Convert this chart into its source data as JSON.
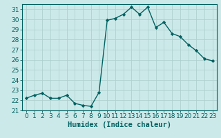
{
  "x": [
    0,
    1,
    2,
    3,
    4,
    5,
    6,
    7,
    8,
    9,
    10,
    11,
    12,
    13,
    14,
    15,
    16,
    17,
    18,
    19,
    20,
    21,
    22,
    23
  ],
  "y": [
    22.2,
    22.5,
    22.7,
    22.2,
    22.2,
    22.5,
    21.7,
    21.5,
    21.4,
    22.8,
    29.9,
    30.1,
    30.5,
    31.2,
    30.5,
    31.2,
    29.2,
    29.7,
    28.6,
    28.3,
    27.5,
    26.9,
    26.1,
    25.9
  ],
  "line_color": "#006060",
  "marker": "D",
  "marker_size": 2.2,
  "bg_color": "#cce9e9",
  "grid_color": "#b0d0d0",
  "xlabel": "Humidex (Indice chaleur)",
  "xlim": [
    -0.5,
    23.5
  ],
  "ylim": [
    21,
    31.5
  ],
  "yticks": [
    21,
    22,
    23,
    24,
    25,
    26,
    27,
    28,
    29,
    30,
    31
  ],
  "xticks": [
    0,
    1,
    2,
    3,
    4,
    5,
    6,
    7,
    8,
    9,
    10,
    11,
    12,
    13,
    14,
    15,
    16,
    17,
    18,
    19,
    20,
    21,
    22,
    23
  ],
  "tick_fontsize": 6.5,
  "xlabel_fontsize": 7.5,
  "line_width": 1.0
}
